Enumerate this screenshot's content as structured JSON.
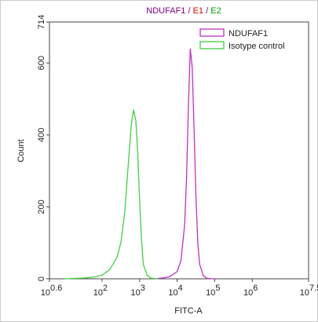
{
  "chart_data": {
    "type": "line",
    "title": [
      "NDUFAF1",
      " / ",
      "E1",
      " / ",
      "E2"
    ],
    "title_colors": [
      "#800080",
      "#800080",
      "#e00000",
      "#800080",
      "#00a000"
    ],
    "xlabel": "FITC-A",
    "ylabel": "Count",
    "xscale": "log",
    "xlim": [
      3.981,
      31622776.6
    ],
    "xticks": [
      {
        "value": 3.981,
        "label": "10",
        "exponent": "0.6"
      },
      {
        "value": 100,
        "label": "10",
        "exponent": "2"
      },
      {
        "value": 1000,
        "label": "10",
        "exponent": "3"
      },
      {
        "value": 10000,
        "label": "10",
        "exponent": "4"
      },
      {
        "value": 100000,
        "label": "10",
        "exponent": "5"
      },
      {
        "value": 1000000,
        "label": "10",
        "exponent": "6"
      },
      {
        "value": 31622776.6,
        "label": "10",
        "exponent": "7.5"
      }
    ],
    "ylim": [
      0,
      714
    ],
    "yticks": [
      0,
      200,
      400,
      600,
      714
    ],
    "legend": "top-right",
    "series": [
      {
        "name": "NDUFAF1",
        "color": "#c030c0",
        "x": [
          2512,
          3981,
          6310,
          10000,
          12589,
          15849,
          17783,
          19953,
          22387,
          25119,
          28184,
          31623,
          35481,
          39811,
          50119,
          63096,
          100000
        ],
        "values": [
          0,
          2,
          6,
          20,
          50,
          150,
          280,
          480,
          640,
          590,
          420,
          230,
          100,
          40,
          8,
          1,
          0
        ]
      },
      {
        "name": "Isotype control",
        "color": "#40d040",
        "x": [
          10,
          32,
          63,
          100,
          158,
          251,
          316,
          398,
          501,
          603,
          692,
          794,
          891,
          1000,
          1122,
          1259,
          1585,
          1995,
          3162
        ],
        "values": [
          0,
          2,
          5,
          10,
          25,
          60,
          100,
          180,
          320,
          430,
          470,
          440,
          350,
          220,
          110,
          40,
          10,
          2,
          0
        ]
      }
    ]
  }
}
